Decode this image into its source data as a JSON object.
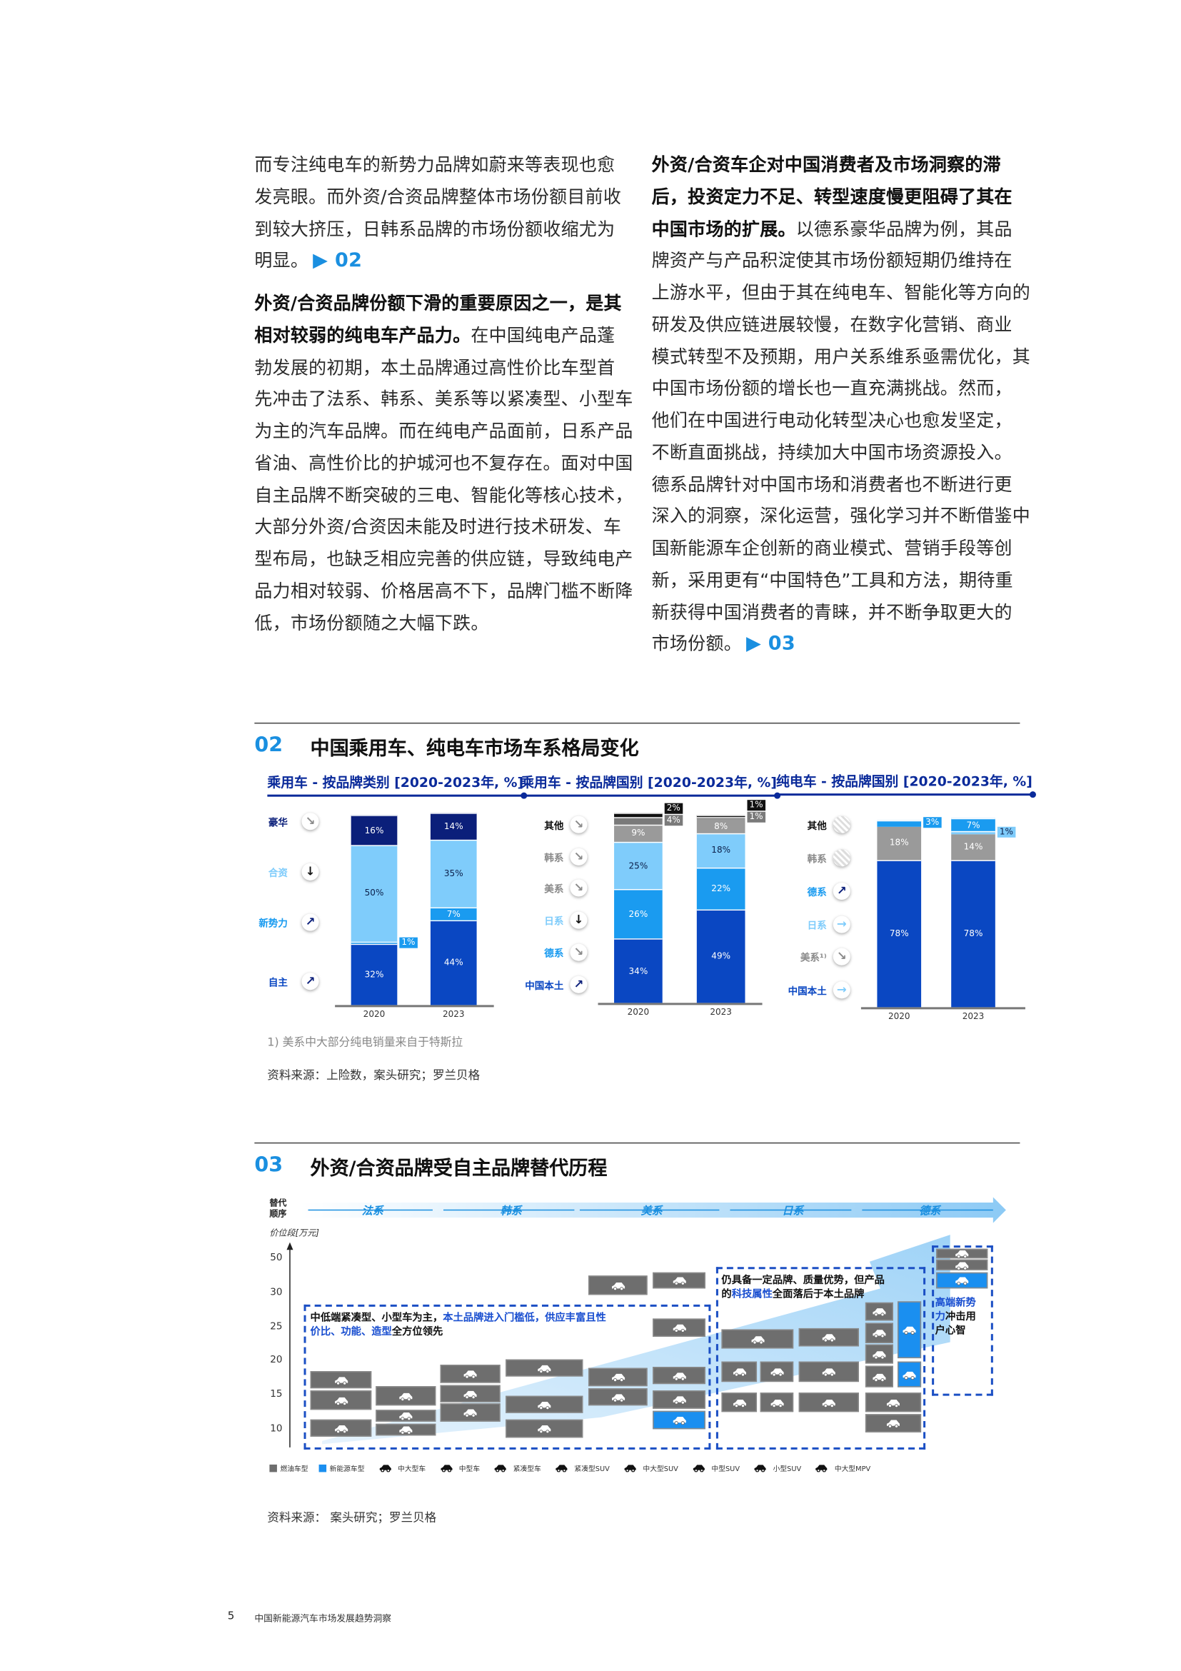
{
  "left_column": [
    {
      "t": "而专注纯电车的新势力品牌如蔚来等表现也愈"
    },
    {
      "t": "发亮眼。而外资/合资品牌整体市场份额目前收"
    },
    {
      "t": "到较大挤压，日韩系品牌的市场份额收缩尤为"
    },
    {
      "t": "明显。",
      "ref": "▶ 02"
    },
    {
      "b": "外资/合资品牌份额下滑的重要原因之一，是其"
    },
    {
      "b": "相对较弱的纯电车产品力。",
      "t": "在中国纯电产品蓬"
    },
    {
      "t": "勃发展的初期，本土品牌通过高性价比车型首"
    },
    {
      "t": "先冲击了法系、韩系、美系等以紧凑型、小型车"
    },
    {
      "t": "为主的汽车品牌。而在纯电产品面前，日系产品"
    },
    {
      "t": "省油、高性价比的护城河也不复存在。面对中国"
    },
    {
      "t": "自主品牌不断突破的三电、智能化等核心技术，"
    },
    {
      "t": "大部分外资/合资因未能及时进行技术研发、车"
    },
    {
      "t": "型布局，也缺乏相应完善的供应链，导致纯电产"
    },
    {
      "t": "品力相对较弱、价格居高不下，品牌门槛不断降"
    },
    {
      "t": "低，市场份额随之大幅下跌。"
    }
  ],
  "right_column": [
    {
      "b": "外资/合资车企对中国消费者及市场洞察的滞"
    },
    {
      "b": "后，投资定力不足、转型速度慢更阻碍了其在"
    },
    {
      "b": "中国市场的扩展。",
      "t": "以德系豪华品牌为例，其品"
    },
    {
      "t": "牌资产与产品积淀使其市场份额短期仍维持在"
    },
    {
      "t": "上游水平，但由于其在纯电车、智能化等方向的"
    },
    {
      "t": "研发及供应链进展较慢，在数字化营销、商业"
    },
    {
      "t": "模式转型不及预期，用户关系维系亟需优化，其"
    },
    {
      "t": "中国市场份额的增长也一直充满挑战。然而，"
    },
    {
      "t": "他们在中国进行电动化转型决心也愈发坚定，"
    },
    {
      "t": "不断直面挑战，持续加大中国市场资源投入。"
    },
    {
      "t": "德系品牌针对中国市场和消费者也不断进行更"
    },
    {
      "t": "深入的洞察，深化运营，强化学习并不断借鉴中"
    },
    {
      "t": "国新能源车企创新的商业模式、营销手段等创"
    },
    {
      "t": "新，采用更有“中国特色”工具和方法，期待重"
    },
    {
      "t": "新获得中国消费者的青睐，并不断争取更大的"
    },
    {
      "t": "市场份额。",
      "ref": "▶ 03"
    }
  ],
  "fig02": {
    "number": "02",
    "title": "中国乘用车、纯电车市场车系格局变化",
    "footnote": "1) 美系中大部分纯电销量来自于特斯拉",
    "source": "资料来源：上险数，案头研究；罗兰贝格"
  },
  "chart_data": [
    {
      "type": "bar",
      "stacked": true,
      "title": "乘用车 - 按品牌类别 [2020-2023年, %]",
      "categories": [
        "2020",
        "2023"
      ],
      "series": [
        {
          "name": "自主",
          "values": [
            32,
            44
          ],
          "color": "#0a47c2",
          "label_color": "#0a47c2",
          "trend": "up-right"
        },
        {
          "name": "新势力",
          "values": [
            1,
            7
          ],
          "color": "#1a9bf0",
          "label_color": "#1a9bf0",
          "trend": "up-right"
        },
        {
          "name": "合资",
          "values": [
            50,
            35
          ],
          "color": "#7fccfb",
          "label_color": "#7fccfb",
          "trend": "down"
        },
        {
          "name": "豪华",
          "values": [
            16,
            14
          ],
          "color": "#0b1f7a",
          "label_color": "#0b1f7a",
          "trend": "down-right"
        }
      ]
    },
    {
      "type": "bar",
      "stacked": true,
      "title": "乘用车 - 按品牌国别 [2020-2023年, %]",
      "categories": [
        "2020",
        "2023"
      ],
      "series": [
        {
          "name": "中国本土",
          "values": [
            34,
            49
          ],
          "color": "#0a47c2",
          "label_color": "#0a47c2",
          "trend": "up-right"
        },
        {
          "name": "德系",
          "values": [
            26,
            22
          ],
          "color": "#1a9bf0",
          "label_color": "#1a9bf0",
          "trend": "down-right"
        },
        {
          "name": "日系",
          "values": [
            25,
            18
          ],
          "color": "#7fccfb",
          "label_color": "#7fccfb",
          "trend": "down"
        },
        {
          "name": "美系",
          "values": [
            9,
            8
          ],
          "color": "#9a9a9a",
          "label_color": "#8a8a8a",
          "trend": "down-right"
        },
        {
          "name": "韩系",
          "values": [
            4,
            1
          ],
          "color": "#7a7a7a",
          "label_color": "#8a8a8a",
          "trend": "down-right"
        },
        {
          "name": "其他",
          "values": [
            2,
            1
          ],
          "color": "#111111",
          "label_color": "#111111",
          "trend": "down-right"
        }
      ]
    },
    {
      "type": "bar",
      "stacked": true,
      "title": "纯电车 - 按品牌国别 [2020-2023年, %]",
      "categories": [
        "2020",
        "2023"
      ],
      "series": [
        {
          "name": "中国本土",
          "values": [
            78,
            78
          ],
          "color": "#0a47c2",
          "label_color": "#0a47c2",
          "trend": "right"
        },
        {
          "name": "美系¹⁾",
          "values": [
            18,
            14
          ],
          "color": "#9a9a9a",
          "label_color": "#8a8a8a",
          "trend": "down-right"
        },
        {
          "name": "日系",
          "values": [
            0,
            1
          ],
          "color": "#7fccfb",
          "label_color": "#7fccfb",
          "trend": "right"
        },
        {
          "name": "德系",
          "values": [
            3,
            7
          ],
          "color": "#1a9bf0",
          "label_color": "#1a9bf0",
          "trend": "up-right"
        },
        {
          "name": "韩系",
          "values": [
            0,
            0
          ],
          "color": "#cccccc",
          "label_color": "#8a8a8a",
          "trend": "none"
        },
        {
          "name": "其他",
          "values": [
            0,
            0
          ],
          "color": "#cccccc",
          "label_color": "#111111",
          "trend": "none"
        }
      ]
    }
  ],
  "fig03": {
    "number": "03",
    "title": "外资/合资品牌受自主品牌替代历程",
    "sequence_label": "替代顺序",
    "sequence": [
      "法系",
      "韩系",
      "美系",
      "日系",
      "德系"
    ],
    "y_axis_label": "价位段[万元]",
    "y_ticks": [
      "50",
      "30",
      "25",
      "20",
      "15",
      "10"
    ],
    "annotation_left": {
      "t1": "中低端紧凑型、小型车为主，",
      "h1": "本土品牌进入门槛低，供应丰富且性",
      "h2": "价比、功能、造型",
      "t2": "全方位领先"
    },
    "annotation_mid": {
      "t1": "仍具备一定品牌、质量优势，但产品",
      "t2a": "的",
      "h": "科技属性",
      "t2b": "全面落后于本土品牌"
    },
    "annotation_right": {
      "h": "高端新势",
      "h2": "力",
      "t": "冲击用",
      "t2": "户心智"
    },
    "legend": [
      "燃油车型",
      "新能源车型",
      "中大型车",
      "中型车",
      "紧凑型车",
      "紧凑型SUV",
      "中大型SUV",
      "中型SUV",
      "小型SUV",
      "中大型MPV"
    ],
    "source": "资料来源：  案头研究；罗兰贝格"
  },
  "footer": {
    "page": "5",
    "title": "中国新能源汽车市场发展趋势洞察"
  }
}
